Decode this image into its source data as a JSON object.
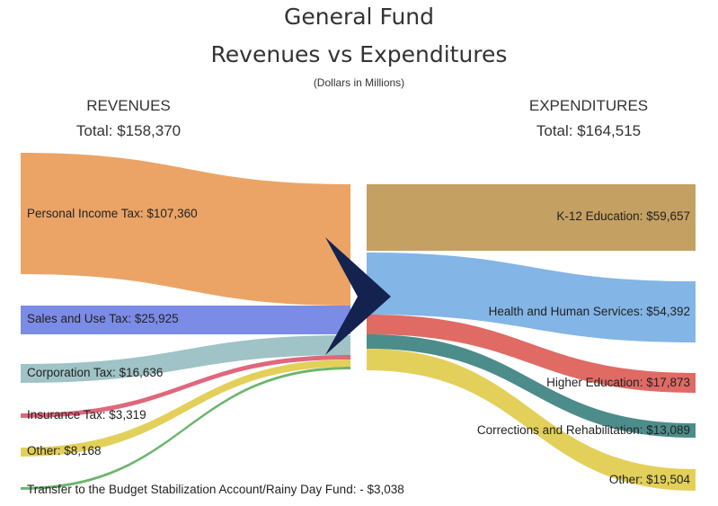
{
  "chart_data": {
    "type": "sankey",
    "title": "General Fund",
    "subtitle": "Revenues vs Expenditures",
    "note": "(Dollars in Millions)",
    "revenues": {
      "heading": "REVENUES",
      "total_label": "Total: $158,370",
      "items": [
        {
          "label": "Personal Income Tax: $107,360",
          "name": "Personal Income Tax",
          "value": 107360,
          "color": "#eba466"
        },
        {
          "label": "Sales and Use Tax: $25,925",
          "name": "Sales and Use Tax",
          "value": 25925,
          "color": "#7b8ce6"
        },
        {
          "label": "Corporation Tax: $16,636",
          "name": "Corporation Tax",
          "value": 16636,
          "color": "#9fc3c6"
        },
        {
          "label": "Insurance Tax: $3,319",
          "name": "Insurance Tax",
          "value": 3319,
          "color": "#e0677c"
        },
        {
          "label": "Other: $8,168",
          "name": "Other",
          "value": 8168,
          "color": "#e3d05a"
        },
        {
          "label": "Transfer to the Budget Stabilization Account/Rainy Day Fund: - $3,038",
          "name": "Transfer to the Budget Stabilization Account/Rainy Day Fund",
          "value": -3038,
          "color": "#6db56e"
        }
      ]
    },
    "expenditures": {
      "heading": "EXPENDITURES",
      "total_label": "Total: $164,515",
      "items": [
        {
          "label": "K-12 Education: $59,657",
          "name": "K-12 Education",
          "value": 59657,
          "color": "#c4a062"
        },
        {
          "label": "Health and Human Services: $54,392",
          "name": "Health and Human Services",
          "value": 54392,
          "color": "#83b5e6"
        },
        {
          "label": "Higher Education: $17,873",
          "name": "Higher Education",
          "value": 17873,
          "color": "#e06a64"
        },
        {
          "label": "Corrections and Rehabilitation: $13,089",
          "name": "Corrections and Rehabilitation",
          "value": 13089,
          "color": "#4c8c8a"
        },
        {
          "label": "Other: $19,504",
          "name": "Other",
          "value": 19504,
          "color": "#e3d05a"
        }
      ]
    },
    "arrow_color": "#14224f"
  }
}
